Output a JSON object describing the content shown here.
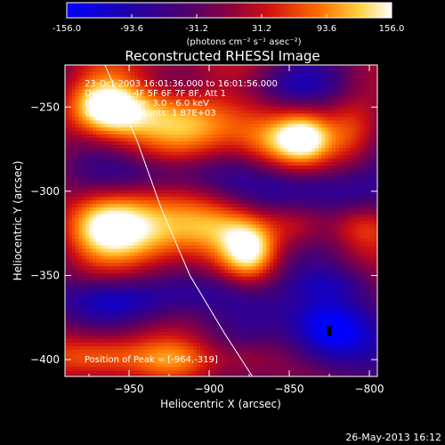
{
  "chart_data": {
    "type": "heatmap",
    "title": "Reconstructed RHESSI Image",
    "xlabel": "Heliocentric X (arcsec)",
    "ylabel": "Heliocentric Y (arcsec)",
    "xlim": [
      -990,
      -795
    ],
    "ylim": [
      -410,
      -225
    ],
    "x_ticks": [
      -950,
      -900,
      -850,
      -800
    ],
    "y_ticks": [
      -250,
      -300,
      -350,
      -400
    ],
    "colorbar": {
      "min": -156.0,
      "max": 156.0,
      "ticks": [
        "-156.0",
        "-93.6",
        "-31.2",
        "31.2",
        "93.6",
        "156.0"
      ],
      "unit_label": "(photons cm⁻² s⁻¹ asec⁻²)"
    },
    "annotations": [
      "23-Oct-2003 16:01:36.000 to 16:01:56.000",
      "Detectors: 4F 5F 6F 7F 8F, Att 1",
      "Energy Range: 3.0 - 6.0 keV",
      "Clean    Total counts: 1.87E+03"
    ],
    "peak_label": "Position of Peak = [-964,-319]",
    "peak": {
      "x": -964,
      "y": -319
    },
    "limb": [
      [
        -965,
        -225
      ],
      [
        -945,
        -270
      ],
      [
        -930,
        -310
      ],
      [
        -912,
        -350
      ],
      [
        -890,
        -385
      ],
      [
        -873,
        -410
      ]
    ],
    "marker": {
      "x": -825,
      "y": -383
    },
    "blobs": [
      {
        "x": -965,
        "y": -250,
        "sx": 16,
        "sy": 12,
        "a": 155
      },
      {
        "x": -940,
        "y": -255,
        "sx": 25,
        "sy": 14,
        "a": 110
      },
      {
        "x": -900,
        "y": -262,
        "sx": 22,
        "sy": 13,
        "a": 90
      },
      {
        "x": -860,
        "y": -270,
        "sx": 18,
        "sy": 12,
        "a": 110
      },
      {
        "x": -840,
        "y": -268,
        "sx": 12,
        "sy": 10,
        "a": 130
      },
      {
        "x": -810,
        "y": -265,
        "sx": 12,
        "sy": 14,
        "a": 80
      },
      {
        "x": -965,
        "y": -320,
        "sx": 18,
        "sy": 14,
        "a": 150
      },
      {
        "x": -935,
        "y": -325,
        "sx": 20,
        "sy": 16,
        "a": 120
      },
      {
        "x": -900,
        "y": -320,
        "sx": 20,
        "sy": 14,
        "a": 110
      },
      {
        "x": -875,
        "y": -335,
        "sx": 12,
        "sy": 12,
        "a": 140
      },
      {
        "x": -845,
        "y": -320,
        "sx": 14,
        "sy": 10,
        "a": 60
      },
      {
        "x": -805,
        "y": -322,
        "sx": 14,
        "sy": 10,
        "a": 60
      },
      {
        "x": -970,
        "y": -398,
        "sx": 22,
        "sy": 10,
        "a": 120
      },
      {
        "x": -920,
        "y": -400,
        "sx": 20,
        "sy": 9,
        "a": 80
      },
      {
        "x": -875,
        "y": -400,
        "sx": 15,
        "sy": 8,
        "a": 50
      },
      {
        "x": -930,
        "y": -225,
        "sx": 30,
        "sy": 6,
        "a": 40
      },
      {
        "x": -930,
        "y": -290,
        "sx": 30,
        "sy": 8,
        "a": -60
      },
      {
        "x": -840,
        "y": -300,
        "sx": 35,
        "sy": 10,
        "a": -80
      },
      {
        "x": -960,
        "y": -365,
        "sx": 25,
        "sy": 9,
        "a": -100
      },
      {
        "x": -900,
        "y": -360,
        "sx": 20,
        "sy": 8,
        "a": -50
      },
      {
        "x": -870,
        "y": -370,
        "sx": 20,
        "sy": 10,
        "a": -40
      },
      {
        "x": -825,
        "y": -383,
        "sx": 18,
        "sy": 14,
        "a": -165
      },
      {
        "x": -825,
        "y": -355,
        "sx": 20,
        "sy": 7,
        "a": -50
      },
      {
        "x": -845,
        "y": -237,
        "sx": 20,
        "sy": 8,
        "a": -60
      }
    ]
  },
  "footer": {
    "timestamp": "26-May-2013 16:12"
  }
}
